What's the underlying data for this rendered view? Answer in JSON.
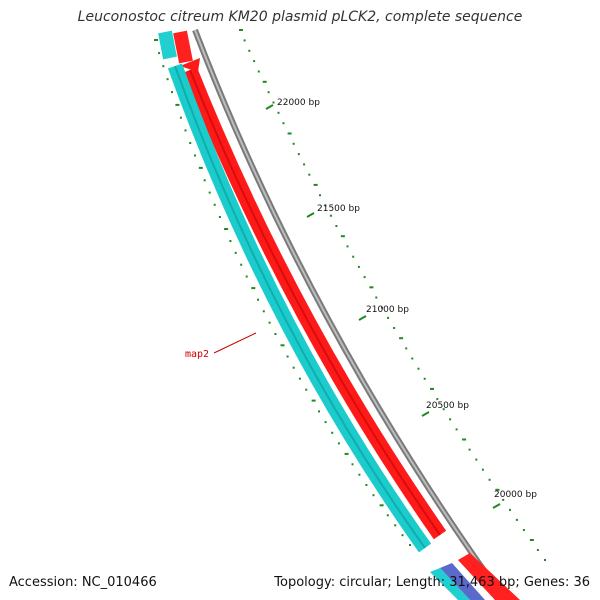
{
  "title": "Leuconostoc citreum KM20 plasmid pLCK2, complete sequence",
  "accession": "Accession: NC_010466",
  "summary": "Topology: circular; Length: 31,463 bp; Genes: 36",
  "ticks": [
    "22000 bp",
    "21500 bp",
    "21000 bp",
    "20500 bp",
    "20000 bp"
  ],
  "gene_label": "map2",
  "colors": {
    "forward_gene": "#ff2020",
    "reverse_gene": "#20d0d0",
    "backbone": "#808080",
    "ticks": "#228822",
    "label": "#cc0000"
  }
}
